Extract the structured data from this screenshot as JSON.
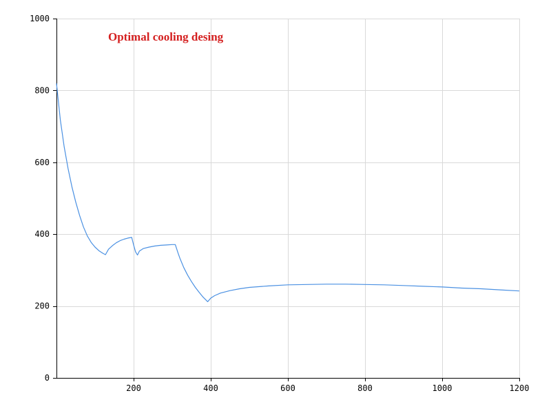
{
  "chart_data": {
    "type": "line",
    "title": "Optimal cooling desing",
    "xlabel": "",
    "ylabel": "",
    "xlim": [
      0,
      1200
    ],
    "ylim": [
      0,
      1000
    ],
    "x_ticks": [
      200,
      400,
      600,
      800,
      1000,
      1200
    ],
    "y_ticks": [
      0,
      200,
      400,
      600,
      800,
      1000
    ],
    "grid": true,
    "colors": {
      "line": "#4a90e2",
      "title": "#d42020",
      "grid": "#d9d9d9",
      "axis": "#000000"
    },
    "series": [
      {
        "x": [
          0,
          10,
          20,
          30,
          40,
          50,
          60,
          70,
          80,
          90,
          100,
          110,
          120,
          127,
          135,
          145,
          155,
          165,
          175,
          185,
          195,
          200,
          205,
          210,
          215,
          225,
          240,
          255,
          270,
          285,
          300,
          308,
          315,
          320,
          330,
          340,
          350,
          360,
          370,
          380,
          392,
          400,
          410,
          425,
          450,
          475,
          500,
          550,
          600,
          650,
          700,
          750,
          800,
          850,
          900,
          950,
          1000,
          1050,
          1100,
          1150,
          1200
        ],
        "y": [
          820,
          718,
          643,
          583,
          532,
          489,
          452,
          420,
          395,
          377,
          364,
          354,
          347,
          343,
          358,
          368,
          376,
          382,
          386,
          389,
          391,
          370,
          351,
          342,
          353,
          360,
          364,
          367,
          369,
          370,
          371,
          371,
          348,
          333,
          307,
          286,
          268,
          252,
          238,
          225,
          212,
          222,
          229,
          236,
          243,
          248,
          252,
          256,
          259,
          260,
          261,
          261,
          260,
          259,
          257,
          255,
          253,
          250,
          248,
          245,
          242
        ]
      }
    ]
  }
}
